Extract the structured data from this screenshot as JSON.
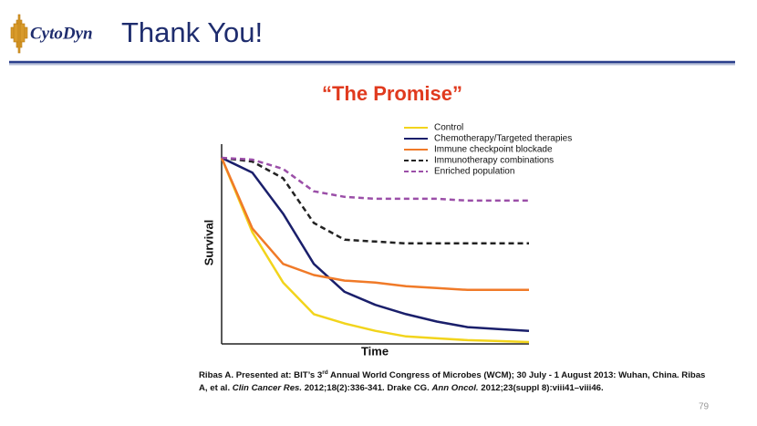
{
  "header": {
    "logo": "CytoDyn",
    "title": "Thank You!"
  },
  "chart_data": {
    "type": "line",
    "title": "“The Promise”",
    "x_label": "Time",
    "y_label": "Survival",
    "x": [
      0,
      1,
      2,
      3,
      4,
      5,
      6,
      7,
      8,
      9,
      10
    ],
    "xlim": [
      0,
      10
    ],
    "ylim": [
      0,
      100
    ],
    "legend": "top-right",
    "series": [
      {
        "name": "Control",
        "color": "#f2d41c",
        "dashed": false,
        "values": [
          100,
          60,
          33,
          16,
          11,
          7,
          4,
          3,
          2,
          1.5,
          1
        ]
      },
      {
        "name": "Chemotherapy/Targeted therapies",
        "color": "#1a1f6b",
        "dashed": false,
        "values": [
          100,
          92,
          70,
          43,
          28,
          21,
          16,
          12,
          9,
          8,
          7
        ]
      },
      {
        "name": "Immune checkpoint blockade",
        "color": "#f07a28",
        "dashed": false,
        "values": [
          100,
          62,
          43,
          37,
          34,
          33,
          31,
          30,
          29,
          29,
          29
        ]
      },
      {
        "name": "Immunotherapy combinations",
        "color": "#222222",
        "dashed": true,
        "values": [
          100,
          98,
          89,
          65,
          56,
          55,
          54,
          54,
          54,
          54,
          54
        ]
      },
      {
        "name": "Enriched population",
        "color": "#9b4fa8",
        "dashed": true,
        "values": [
          100,
          99,
          94,
          82,
          79,
          78,
          78,
          78,
          77,
          77,
          77
        ]
      }
    ]
  },
  "footer": {
    "citation": [
      "Ribas A. Presented at: BIT’s 3",
      "rd",
      " Annual World Congress of Microbes (WCM); 30 July - 1 August 2013: Wuhan, China. Ribas A, et al. ",
      "Clin Cancer Res.",
      " 2012;18(2):336-341. Drake CG. ",
      "Ann Oncol.",
      " 2012;23(suppl 8):viii41–viii46."
    ],
    "page_number": 79
  }
}
